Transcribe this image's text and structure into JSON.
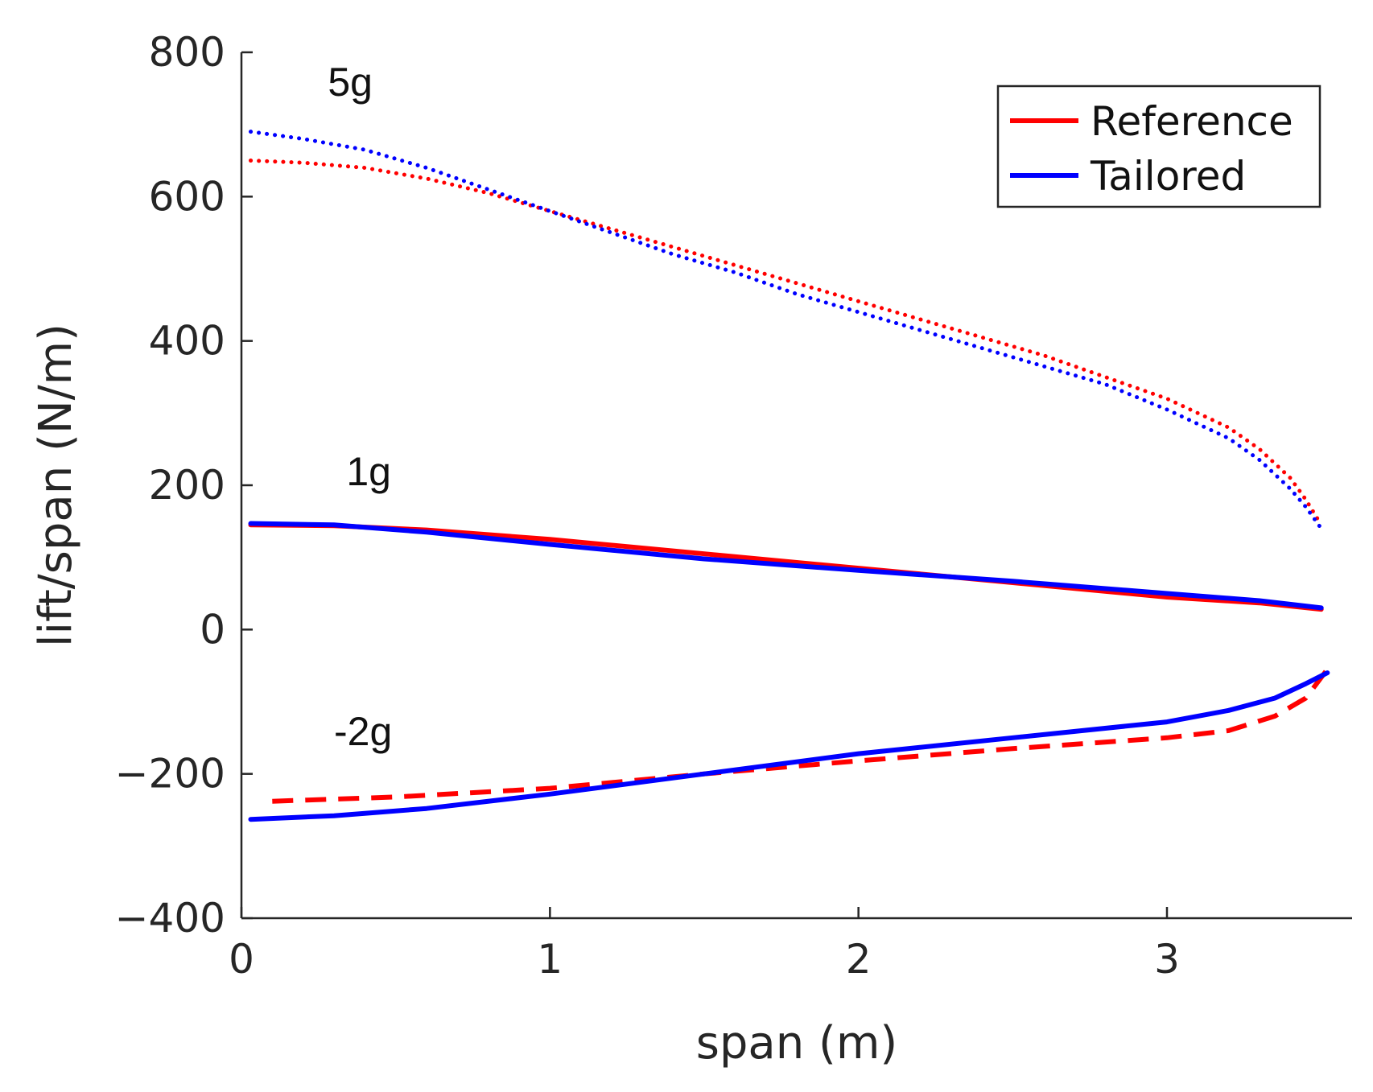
{
  "chart_data": {
    "type": "line",
    "title": "",
    "xlabel": "span (m)",
    "ylabel": "lift/span (N/m)",
    "xlim": [
      0,
      3.6
    ],
    "ylim": [
      -400,
      800
    ],
    "xticks": [
      0,
      1,
      2,
      3
    ],
    "yticks": [
      -400,
      -200,
      0,
      200,
      400,
      600,
      800
    ],
    "grid": false,
    "legend": {
      "position": "top-right",
      "entries": [
        {
          "label": "Reference",
          "color": "#ff0000"
        },
        {
          "label": "Tailored",
          "color": "#0000ff"
        }
      ]
    },
    "annotations": [
      {
        "text": "5g",
        "x": 0.28,
        "y": 740
      },
      {
        "text": "1g",
        "x": 0.34,
        "y": 200
      },
      {
        "text": "-2g",
        "x": 0.3,
        "y": -160
      }
    ],
    "series": [
      {
        "name": "Reference 5g",
        "case": "5g",
        "group": "Reference",
        "color": "#ff0000",
        "style": "dotted",
        "x": [
          0.03,
          0.2,
          0.4,
          0.6,
          0.8,
          1.0,
          1.2,
          1.4,
          1.6,
          1.8,
          2.0,
          2.2,
          2.4,
          2.6,
          2.8,
          3.0,
          3.2,
          3.3,
          3.4,
          3.45,
          3.5
        ],
        "y": [
          650,
          647,
          640,
          625,
          605,
          580,
          555,
          530,
          505,
          480,
          455,
          430,
          405,
          380,
          350,
          320,
          280,
          250,
          210,
          180,
          145
        ]
      },
      {
        "name": "Tailored 5g",
        "case": "5g",
        "group": "Tailored",
        "color": "#0000ff",
        "style": "dotted",
        "x": [
          0.03,
          0.2,
          0.4,
          0.6,
          0.8,
          1.0,
          1.2,
          1.4,
          1.6,
          1.8,
          2.0,
          2.2,
          2.4,
          2.6,
          2.8,
          3.0,
          3.2,
          3.3,
          3.4,
          3.45,
          3.5
        ],
        "y": [
          690,
          680,
          665,
          640,
          610,
          580,
          550,
          520,
          495,
          465,
          440,
          415,
          390,
          365,
          340,
          305,
          265,
          235,
          195,
          170,
          140
        ]
      },
      {
        "name": "Reference 1g",
        "case": "1g",
        "group": "Reference",
        "color": "#ff0000",
        "style": "solid",
        "x": [
          0.03,
          0.3,
          0.6,
          1.0,
          1.5,
          2.0,
          2.5,
          3.0,
          3.3,
          3.5
        ],
        "y": [
          145,
          144,
          138,
          125,
          105,
          85,
          65,
          45,
          37,
          28
        ]
      },
      {
        "name": "Tailored 1g",
        "case": "1g",
        "group": "Tailored",
        "color": "#0000ff",
        "style": "solid",
        "x": [
          0.03,
          0.3,
          0.6,
          1.0,
          1.5,
          2.0,
          2.5,
          3.0,
          3.3,
          3.5
        ],
        "y": [
          147,
          145,
          135,
          118,
          98,
          82,
          67,
          50,
          40,
          30
        ]
      },
      {
        "name": "Reference -2g",
        "case": "-2g",
        "group": "Reference",
        "color": "#ff0000",
        "style": "dashed",
        "x": [
          0.1,
          0.5,
          1.0,
          1.5,
          2.0,
          2.5,
          3.0,
          3.2,
          3.35,
          3.45,
          3.52
        ],
        "y": [
          -238,
          -232,
          -220,
          -200,
          -182,
          -165,
          -150,
          -140,
          -120,
          -95,
          -55
        ]
      },
      {
        "name": "Tailored -2g",
        "case": "-2g",
        "group": "Tailored",
        "color": "#0000ff",
        "style": "solid",
        "x": [
          0.03,
          0.3,
          0.6,
          1.0,
          1.5,
          2.0,
          2.5,
          3.0,
          3.2,
          3.35,
          3.45,
          3.52
        ],
        "y": [
          -263,
          -258,
          -248,
          -228,
          -200,
          -172,
          -150,
          -128,
          -112,
          -95,
          -75,
          -60
        ]
      }
    ]
  }
}
